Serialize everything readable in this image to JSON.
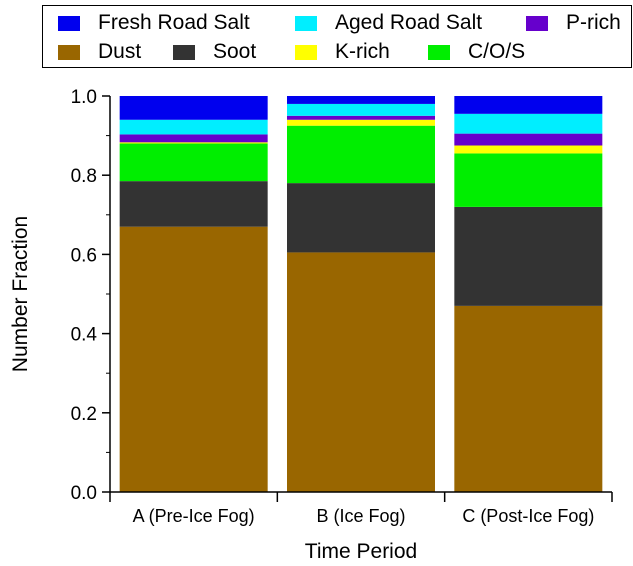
{
  "chart_data": {
    "type": "bar",
    "stacked": true,
    "categories": [
      "A (Pre-Ice Fog)",
      "B (Ice Fog)",
      "C (Post-Ice Fog)"
    ],
    "series": [
      {
        "name": "Dust",
        "color": "#996600",
        "values": [
          0.67,
          0.605,
          0.47
        ]
      },
      {
        "name": "Soot",
        "color": "#333333",
        "values": [
          0.115,
          0.175,
          0.25
        ]
      },
      {
        "name": "C/O/S",
        "color": "#00ee00",
        "values": [
          0.095,
          0.145,
          0.135
        ]
      },
      {
        "name": "K-rich",
        "color": "#ffff00",
        "values": [
          0.003,
          0.015,
          0.02
        ]
      },
      {
        "name": "P-rich",
        "color": "#6600cc",
        "values": [
          0.02,
          0.01,
          0.03
        ]
      },
      {
        "name": "Aged Road Salt",
        "color": "#00eeff",
        "values": [
          0.037,
          0.03,
          0.05
        ]
      },
      {
        "name": "Fresh Road Salt",
        "color": "#0000ee",
        "values": [
          0.06,
          0.02,
          0.045
        ]
      }
    ],
    "xlabel": "Time Period",
    "ylabel": "Number Fraction",
    "ylim": [
      0,
      1
    ],
    "yticks": [
      "0.0",
      "0.2",
      "0.4",
      "0.6",
      "0.8",
      "1.0"
    ],
    "legend_position": "top",
    "grid": false
  }
}
